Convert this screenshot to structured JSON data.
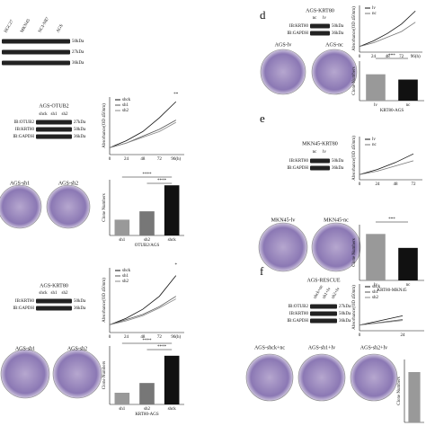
{
  "panel_letters": [
    "d",
    "e",
    "f"
  ],
  "blots": [
    {
      "lanes": [
        "HGC27",
        "MKN45",
        "NCI-N87",
        "AGS"
      ],
      "rows": [
        {
          "kda": "50kDa"
        },
        {
          "kda": "27kDa"
        },
        {
          "kda": "36kDa"
        }
      ]
    },
    {
      "title": "AGS-OTUB2",
      "lanes": [
        "shck",
        "sh1",
        "sh2"
      ],
      "rows": [
        {
          "label": "IB:OTUB2",
          "kda": "27kDa"
        },
        {
          "label": "IB:KRT80",
          "kda": "50kDa"
        },
        {
          "label": "IB:GAPDH",
          "kda": "36kDa"
        }
      ]
    },
    {
      "title": "AGS-KRT80",
      "lanes": [
        "shck",
        "sh1",
        "sh2"
      ],
      "rows": [
        {
          "label": "IB:KRT80",
          "kda": "50kDa"
        },
        {
          "label": "IB:GAPDH",
          "kda": "36kDa"
        }
      ]
    },
    {
      "title": "AGS-KRT80",
      "lanes": [
        "nc",
        "lv"
      ],
      "rows": [
        {
          "label": "IB:KRT80",
          "kda": "50kDa"
        },
        {
          "label": "IB:GAPDH",
          "kda": "36kDa"
        }
      ]
    },
    {
      "title": "MKN45-KRT80",
      "lanes": [
        "nc",
        "lv"
      ],
      "rows": [
        {
          "label": "IB:KRT80",
          "kda": "50kDa"
        },
        {
          "label": "IB:GAPDH",
          "kda": "36kDa"
        }
      ]
    },
    {
      "title": "AGS-RESCUE",
      "lanes": [
        "shck+nc",
        "sh1+lv",
        "sh2+lv"
      ],
      "rows": [
        {
          "label": "IB:OTUB2",
          "kda": "27kDa"
        },
        {
          "label": "IB:KRT80",
          "kda": "50kDa"
        },
        {
          "label": "IB:GAPDH",
          "kda": "36kDa"
        }
      ]
    }
  ],
  "plates": [
    [
      "AGS-sh1",
      "AGS-sh2"
    ],
    [
      "AGS-sh1",
      "AGS-sh2"
    ],
    [
      "AGS-lv",
      "AGS-nc"
    ],
    [
      "MKN45-lv",
      "MKN45-nc"
    ],
    [
      "AGS-shck+nc",
      "AGS-sh1+lv",
      "AGS-sh2+lv"
    ]
  ],
  "charts": [
    {
      "type": "line",
      "y_label": "Absorbance(OD 450nm)",
      "x_ticks": [
        "0",
        "24",
        "48",
        "72",
        "96(h)"
      ],
      "ylim": [
        0,
        2.5
      ],
      "annotation": "**",
      "series": [
        {
          "name": "shck",
          "color": "#111",
          "values": [
            0.3,
            0.6,
            1.0,
            1.6,
            2.3
          ]
        },
        {
          "name": "sh1",
          "color": "#555",
          "values": [
            0.3,
            0.5,
            0.8,
            1.1,
            1.5
          ]
        },
        {
          "name": "sh2",
          "color": "#888",
          "values": [
            0.3,
            0.5,
            0.75,
            1.0,
            1.4
          ]
        }
      ]
    },
    {
      "type": "bar",
      "y_label": "Clone Numbers",
      "x_label": "OTUB2/AGS",
      "categories": [
        "sh1",
        "sh2",
        "shck"
      ],
      "values": [
        85,
        130,
        270
      ],
      "colors": [
        "#999",
        "#777",
        "#111"
      ],
      "ylim": [
        0,
        300
      ],
      "significance": [
        "****",
        "****"
      ]
    },
    {
      "type": "line",
      "y_label": "Absorbance(OD 450nm)",
      "x_ticks": [
        "0",
        "24",
        "48",
        "72",
        "96(h)"
      ],
      "ylim": [
        0,
        2.5
      ],
      "annotation": "*",
      "series": [
        {
          "name": "shck",
          "color": "#111",
          "values": [
            0.3,
            0.55,
            0.9,
            1.4,
            2.2
          ]
        },
        {
          "name": "sh1",
          "color": "#555",
          "values": [
            0.3,
            0.5,
            0.7,
            1.0,
            1.4
          ]
        },
        {
          "name": "sh2",
          "color": "#888",
          "values": [
            0.3,
            0.45,
            0.65,
            0.95,
            1.3
          ]
        }
      ]
    },
    {
      "type": "bar",
      "y_label": "Clone Numbers",
      "x_label": "KRT80-AGS",
      "categories": [
        "sh1",
        "sh2",
        "shck"
      ],
      "values": [
        60,
        110,
        250
      ],
      "colors": [
        "#999",
        "#777",
        "#111"
      ],
      "ylim": [
        0,
        300
      ],
      "significance": [
        "****",
        "****"
      ]
    },
    {
      "type": "line",
      "y_label": "Absorbance(OD 450nm)",
      "x_ticks": [
        "0",
        "24",
        "48",
        "72",
        "96(h)"
      ],
      "ylim": [
        0,
        2.5
      ],
      "series": [
        {
          "name": "lv",
          "color": "#111",
          "values": [
            0.3,
            0.6,
            1.0,
            1.5,
            2.2
          ]
        },
        {
          "name": "nc",
          "color": "#777",
          "values": [
            0.3,
            0.5,
            0.8,
            1.1,
            1.6
          ]
        }
      ]
    },
    {
      "type": "bar",
      "y_label": "Clone Numbers",
      "x_label": "KRT80-AGS",
      "categories": [
        "lv",
        "nc"
      ],
      "values": [
        200,
        160
      ],
      "colors": [
        "#999",
        "#111"
      ],
      "ylim": [
        0,
        300
      ],
      "significance": [
        "***"
      ]
    },
    {
      "type": "line",
      "y_label": "Absorbance(OD 450nm)",
      "x_ticks": [
        "0",
        "24",
        "48",
        "72"
      ],
      "ylim": [
        0,
        2.5
      ],
      "series": [
        {
          "name": "lv",
          "color": "#111",
          "values": [
            0.3,
            0.6,
            1.0,
            1.5
          ]
        },
        {
          "name": "nc",
          "color": "#777",
          "values": [
            0.3,
            0.5,
            0.8,
            1.1
          ]
        }
      ]
    },
    {
      "type": "bar",
      "y_label": "Clone Numbers",
      "x_label": "KRT80-MKN45",
      "categories": [
        "lv",
        "nc"
      ],
      "values": [
        500,
        350
      ],
      "colors": [
        "#999",
        "#111"
      ],
      "ylim": [
        0,
        600
      ],
      "significance": [
        "***"
      ]
    },
    {
      "type": "line",
      "y_label": "Absorbance(OD 450nm)",
      "x_ticks": [
        "0",
        "24"
      ],
      "ylim": [
        0,
        2.5
      ],
      "series": [
        {
          "name": "shck",
          "color": "#111",
          "values": [
            0.3,
            0.8
          ]
        },
        {
          "name": "sh1",
          "color": "#555",
          "values": [
            0.3,
            0.6
          ]
        },
        {
          "name": "sh2",
          "color": "#888",
          "values": [
            0.3,
            0.55
          ]
        }
      ]
    },
    {
      "type": "bar",
      "y_label": "Clone Numbers",
      "categories": [
        null
      ],
      "values": [
        120
      ],
      "colors": [
        "#999"
      ],
      "ylim": [
        0,
        150
      ]
    }
  ]
}
